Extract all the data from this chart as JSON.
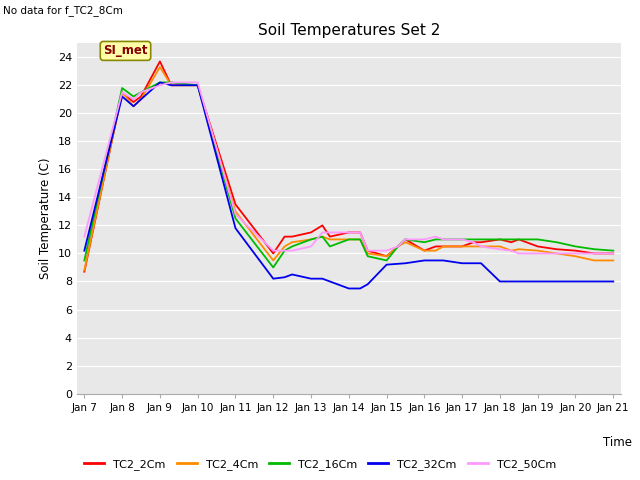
{
  "title": "Soil Temperatures Set 2",
  "subtitle": "No data for f_TC2_8Cm",
  "ylabel": "Soil Temperature (C)",
  "xlabel": "Time",
  "annotation": "SI_met",
  "ylim": [
    0,
    25
  ],
  "yticks": [
    0,
    2,
    4,
    6,
    8,
    10,
    12,
    14,
    16,
    18,
    20,
    22,
    24
  ],
  "x_labels": [
    "Jan 7",
    "Jan 8",
    "Jan 9",
    "Jan 10",
    "Jan 11",
    "Jan 12",
    "Jan 13",
    "Jan 14",
    "Jan 15",
    "Jan 16",
    "Jan 17",
    "Jan 18",
    "Jan 19",
    "Jan 20",
    "Jan 21"
  ],
  "series": {
    "TC2_2Cm": {
      "color": "#ff0000",
      "x": [
        0,
        1,
        1.3,
        1.5,
        2,
        2.3,
        3,
        4,
        5,
        5.3,
        5.5,
        6,
        6.3,
        6.5,
        7,
        7.3,
        7.5,
        8,
        8.3,
        8.5,
        9,
        9.3,
        9.5,
        10,
        10.3,
        10.5,
        11,
        11.3,
        11.5,
        12,
        12.5,
        13,
        13.5,
        14
      ],
      "y": [
        8.7,
        21.5,
        20.8,
        21.2,
        23.7,
        22.0,
        22.0,
        13.5,
        10.0,
        11.2,
        11.2,
        11.5,
        12.0,
        11.2,
        11.5,
        11.5,
        10.2,
        9.8,
        10.5,
        11.0,
        10.2,
        10.5,
        10.5,
        10.5,
        10.8,
        10.8,
        11.0,
        10.8,
        11.0,
        10.5,
        10.3,
        10.2,
        10.0,
        10.0
      ]
    },
    "TC2_4Cm": {
      "color": "#ff8c00",
      "x": [
        0,
        1,
        1.3,
        1.5,
        2,
        2.3,
        3,
        4,
        5,
        5.3,
        5.5,
        6,
        6.3,
        6.5,
        7,
        7.3,
        7.5,
        8,
        8.3,
        8.5,
        9,
        9.3,
        9.5,
        10,
        10.3,
        10.5,
        11,
        11.3,
        11.5,
        12,
        12.5,
        13,
        13.5,
        14
      ],
      "y": [
        8.8,
        21.5,
        20.5,
        21.0,
        23.3,
        22.0,
        22.0,
        13.0,
        9.5,
        10.5,
        10.8,
        11.0,
        11.2,
        11.0,
        11.0,
        11.0,
        10.0,
        9.8,
        10.5,
        10.8,
        10.2,
        10.2,
        10.5,
        10.5,
        10.5,
        10.5,
        10.5,
        10.2,
        10.3,
        10.2,
        10.0,
        9.8,
        9.5,
        9.5
      ]
    },
    "TC2_16Cm": {
      "color": "#00bb00",
      "x": [
        0,
        1,
        1.3,
        1.5,
        2,
        2.3,
        3,
        4,
        5,
        5.3,
        5.5,
        6,
        6.3,
        6.5,
        7,
        7.3,
        7.5,
        8,
        8.3,
        8.5,
        9,
        9.3,
        9.5,
        10,
        10.3,
        10.5,
        11,
        11.3,
        11.5,
        12,
        12.5,
        13,
        13.5,
        14
      ],
      "y": [
        9.5,
        21.8,
        21.2,
        21.5,
        22.2,
        22.2,
        22.0,
        12.5,
        9.0,
        10.2,
        10.5,
        11.0,
        11.2,
        10.5,
        11.0,
        11.0,
        9.8,
        9.5,
        10.5,
        11.0,
        10.8,
        11.0,
        11.0,
        11.0,
        11.0,
        11.0,
        11.0,
        11.0,
        11.0,
        11.0,
        10.8,
        10.5,
        10.3,
        10.2
      ]
    },
    "TC2_32Cm": {
      "color": "#0000ee",
      "x": [
        0,
        1,
        1.3,
        1.5,
        2,
        2.3,
        3,
        4,
        5,
        5.3,
        5.5,
        6,
        6.3,
        6.5,
        7,
        7.3,
        7.5,
        8,
        8.5,
        9,
        9.5,
        10,
        10.5,
        11,
        11.5,
        12,
        12.5,
        13,
        13.5,
        14
      ],
      "y": [
        10.2,
        21.2,
        20.5,
        21.0,
        22.2,
        22.0,
        22.0,
        11.8,
        8.2,
        8.3,
        8.5,
        8.2,
        8.2,
        8.0,
        7.5,
        7.5,
        7.8,
        9.2,
        9.3,
        9.5,
        9.5,
        9.3,
        9.3,
        8.0,
        8.0,
        8.0,
        8.0,
        8.0,
        8.0,
        8.0
      ]
    },
    "TC2_50Cm": {
      "color": "#ff99ff",
      "x": [
        0,
        1,
        1.3,
        1.5,
        2,
        2.3,
        3,
        4,
        5,
        5.3,
        5.5,
        6,
        6.3,
        6.5,
        7,
        7.3,
        7.5,
        8,
        8.3,
        8.5,
        9,
        9.3,
        9.5,
        10,
        10.3,
        10.5,
        11,
        11.3,
        11.5,
        12,
        12.5,
        13,
        13.5,
        14
      ],
      "y": [
        11.2,
        21.5,
        21.0,
        21.5,
        22.0,
        22.2,
        22.2,
        12.8,
        10.2,
        10.2,
        10.2,
        10.5,
        11.5,
        11.5,
        11.5,
        11.5,
        10.2,
        10.2,
        10.5,
        11.0,
        11.0,
        11.2,
        11.0,
        11.0,
        10.8,
        10.5,
        10.3,
        10.2,
        10.0,
        10.0,
        10.0,
        10.0,
        10.0,
        10.0
      ]
    }
  },
  "background_color": "#e8e8e8",
  "grid_color": "#ffffff",
  "legend_colors": {
    "TC2_2Cm": "#ff0000",
    "TC2_4Cm": "#ff8c00",
    "TC2_16Cm": "#00bb00",
    "TC2_32Cm": "#0000ee",
    "TC2_50Cm": "#ff99ff"
  }
}
